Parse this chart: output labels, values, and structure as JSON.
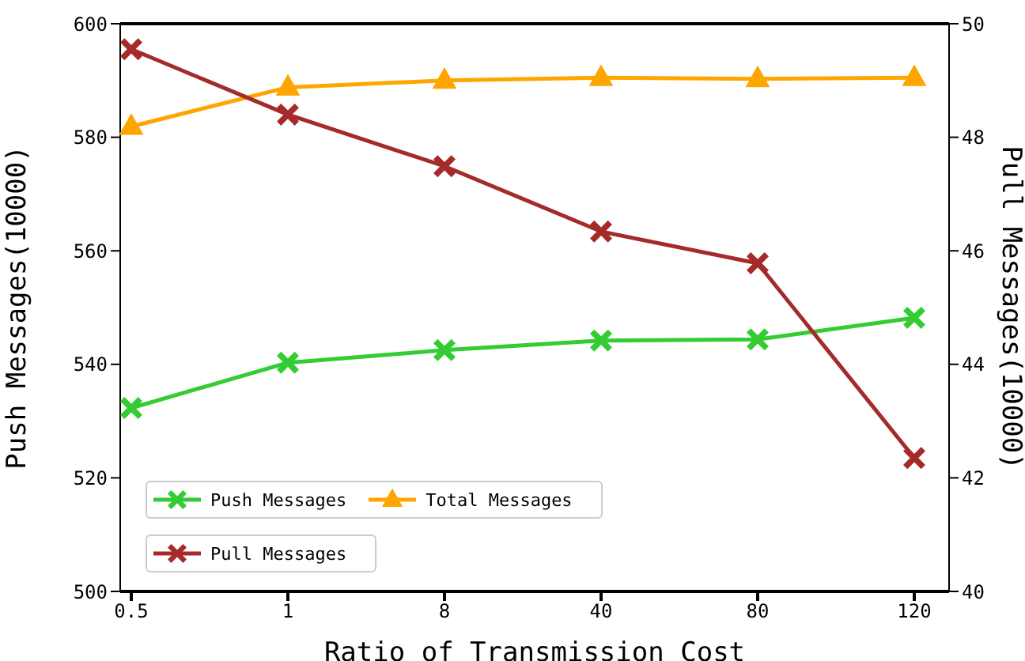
{
  "chart_data": {
    "type": "line",
    "xlabel": "Ratio of Transmission Cost",
    "ylabel": "Push Messages(10000)",
    "y2label": "Pull Messages(10000)",
    "categories": [
      "0.5",
      "1",
      "8",
      "40",
      "80",
      "120"
    ],
    "series": [
      {
        "name": "Push Messages",
        "color": "#33cc33",
        "marker": "cross",
        "values": [
          532.3,
          540.3,
          542.5,
          544.2,
          544.4,
          548.2
        ]
      },
      {
        "name": "Total Messages",
        "color": "#ffa500",
        "marker": "triangle",
        "values": [
          581.9,
          588.8,
          590.0,
          590.5,
          590.3,
          590.5
        ]
      },
      {
        "name": "Pull Messages",
        "color": "#a52a2a",
        "marker": "cross",
        "axis": "y2",
        "values": [
          49.55,
          48.4,
          47.49,
          46.34,
          45.78,
          42.35
        ]
      }
    ],
    "ylim": [
      500,
      600
    ],
    "yticks": [
      500,
      520,
      540,
      560,
      580,
      600
    ],
    "y2lim": [
      40,
      50
    ],
    "y2ticks": [
      40,
      42,
      44,
      46,
      48,
      50
    ],
    "grid": false,
    "legend": "bottom left",
    "line_style": "solid"
  }
}
